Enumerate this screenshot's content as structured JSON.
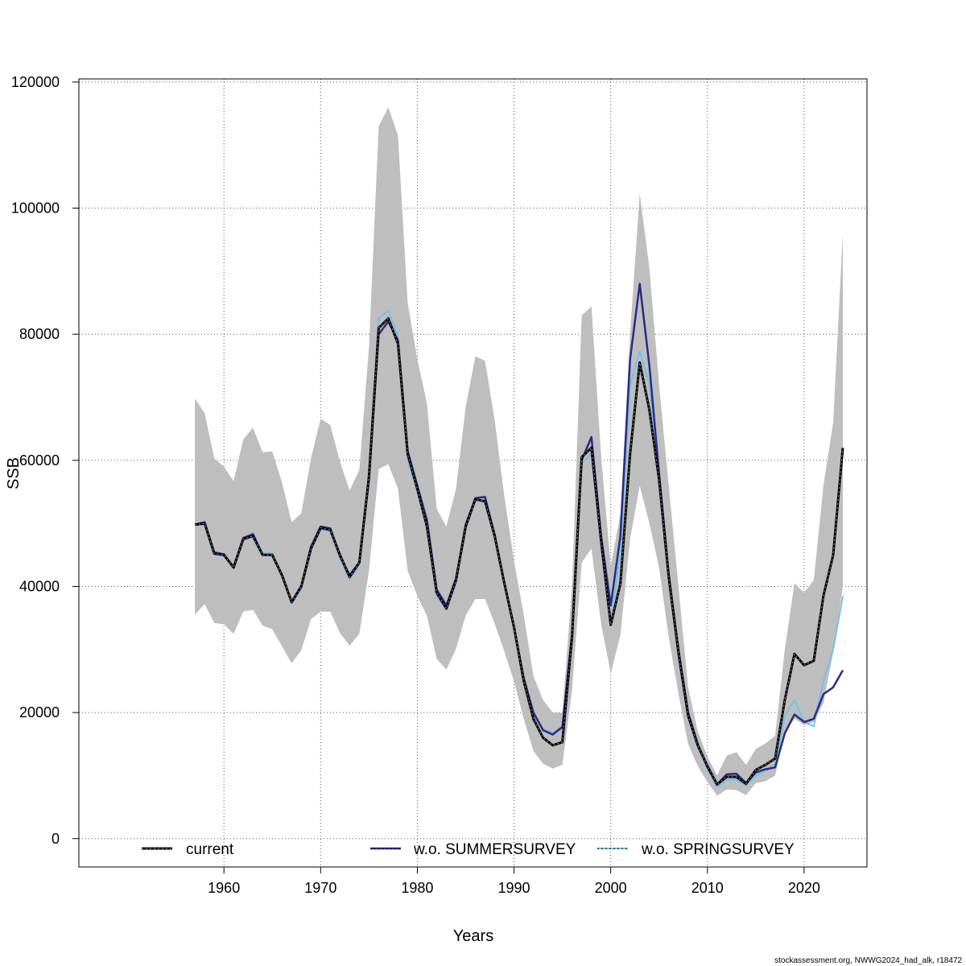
{
  "chart_data": {
    "type": "line",
    "xlabel": "Years",
    "ylabel": "SSB",
    "xlim": [
      1945,
      2026.5
    ],
    "ylim": [
      -4500,
      120500
    ],
    "x_ticks": [
      1960,
      1970,
      1980,
      1990,
      2000,
      2010,
      2020
    ],
    "x_tick_labels": [
      "1960",
      "1970",
      "1980",
      "1990",
      "2000",
      "2010",
      "2020"
    ],
    "y_ticks": [
      0,
      20000,
      40000,
      60000,
      80000,
      100000,
      120000
    ],
    "y_tick_labels": [
      "0",
      "20000",
      "40000",
      "60000",
      "80000",
      "100000",
      "120000"
    ],
    "grid": true,
    "legend_position": "bottom",
    "x": [
      1957,
      1958,
      1959,
      1960,
      1961,
      1962,
      1963,
      1964,
      1965,
      1966,
      1967,
      1968,
      1969,
      1970,
      1971,
      1972,
      1973,
      1974,
      1975,
      1976,
      1977,
      1978,
      1979,
      1980,
      1981,
      1982,
      1983,
      1984,
      1985,
      1986,
      1987,
      1988,
      1989,
      1990,
      1991,
      1992,
      1993,
      1994,
      1995,
      1996,
      1997,
      1998,
      1999,
      2000,
      2001,
      2002,
      2003,
      2004,
      2005,
      2006,
      2007,
      2008,
      2009,
      2010,
      2011,
      2012,
      2013,
      2014,
      2015,
      2016,
      2017,
      2018,
      2019,
      2020,
      2021,
      2022,
      2023,
      2024
    ],
    "band": {
      "lower": [
        35500,
        37200,
        34200,
        34000,
        32500,
        36000,
        36300,
        33800,
        33200,
        30500,
        27800,
        29900,
        34800,
        36000,
        36000,
        32600,
        30600,
        32500,
        42500,
        58600,
        59400,
        55500,
        42500,
        38500,
        35300,
        28500,
        26800,
        30100,
        35400,
        38000,
        38000,
        34100,
        29700,
        24900,
        19000,
        13900,
        11900,
        11100,
        11700,
        23500,
        43800,
        46000,
        34100,
        26200,
        32300,
        47500,
        56000,
        50000,
        43000,
        32000,
        23000,
        15000,
        11500,
        9000,
        6800,
        7800,
        7700,
        6900,
        8800,
        9100,
        10000,
        17000,
        19000,
        18000,
        18500,
        21500,
        29500,
        40000
      ],
      "upper": [
        69800,
        67500,
        60300,
        59000,
        56700,
        63300,
        65200,
        61300,
        61400,
        56500,
        50200,
        51600,
        60300,
        66600,
        65600,
        59800,
        55200,
        58500,
        78000,
        113000,
        116000,
        111500,
        85000,
        76000,
        69000,
        52300,
        49500,
        55500,
        68500,
        76500,
        75800,
        66400,
        54300,
        44000,
        35500,
        25800,
        22000,
        20000,
        20000,
        40000,
        83000,
        84400,
        60800,
        43200,
        51500,
        80000,
        102300,
        90500,
        72000,
        56000,
        40000,
        24000,
        17000,
        13000,
        10000,
        13200,
        13700,
        11700,
        14200,
        15100,
        16300,
        30000,
        40500,
        39000,
        41000,
        56000,
        66000,
        96000
      ]
    },
    "series": [
      {
        "name": "current",
        "color": "#000000",
        "values": [
          49800,
          50000,
          45200,
          45000,
          43000,
          47500,
          48000,
          45000,
          45000,
          41800,
          37500,
          40000,
          46000,
          49300,
          49000,
          45000,
          41500,
          43800,
          57500,
          81000,
          82500,
          78500,
          61000,
          55500,
          49500,
          39000,
          36500,
          41000,
          49500,
          53800,
          53500,
          48000,
          40500,
          33500,
          25000,
          19000,
          16000,
          14800,
          15300,
          32000,
          60500,
          62000,
          47300,
          33900,
          40500,
          61000,
          75500,
          68000,
          57000,
          41500,
          29500,
          19500,
          14800,
          11500,
          8600,
          9800,
          9800,
          8700,
          10900,
          11700,
          12700,
          22000,
          29300,
          27500,
          28200,
          38500,
          45000,
          62000
        ]
      },
      {
        "name": "w.o. SUMMERSURVEY",
        "color": "#2b2a85",
        "values": [
          49800,
          50200,
          45400,
          45100,
          43100,
          47700,
          48300,
          45000,
          45000,
          41700,
          37600,
          40100,
          46300,
          49500,
          49200,
          44800,
          41800,
          43800,
          57000,
          80000,
          82000,
          79000,
          61500,
          56000,
          50500,
          39500,
          37000,
          41300,
          49800,
          54000,
          54200,
          48200,
          40500,
          33400,
          25500,
          20000,
          17200,
          16500,
          17700,
          32500,
          60000,
          63700,
          48000,
          37000,
          48000,
          76000,
          88000,
          75000,
          58000,
          42000,
          30000,
          20000,
          15000,
          11300,
          8600,
          10200,
          10300,
          8800,
          10500,
          11000,
          11300,
          16700,
          19700,
          18500,
          19000,
          22900,
          24000,
          26700
        ]
      },
      {
        "name": "w.o. SPRINGSURVEY",
        "color": "#74c0ea",
        "values": [
          49800,
          50000,
          45100,
          44800,
          42900,
          47400,
          48600,
          45300,
          45300,
          41500,
          37300,
          39500,
          45800,
          49000,
          48700,
          44400,
          41000,
          43500,
          56500,
          82500,
          83800,
          79500,
          60000,
          55000,
          49500,
          38500,
          36300,
          40700,
          49500,
          54000,
          53300,
          47800,
          40300,
          33200,
          25500,
          19700,
          17400,
          16800,
          17800,
          31000,
          59500,
          61000,
          46500,
          34300,
          45500,
          72000,
          77300,
          72000,
          56500,
          41000,
          29000,
          19300,
          14500,
          11000,
          8200,
          9300,
          9400,
          8400,
          10000,
          10800,
          11800,
          19500,
          22000,
          18500,
          17800,
          25000,
          30000,
          38500
        ]
      }
    ]
  },
  "footer": "stockassessment.org, NWWG2024_had_alk, r18472"
}
